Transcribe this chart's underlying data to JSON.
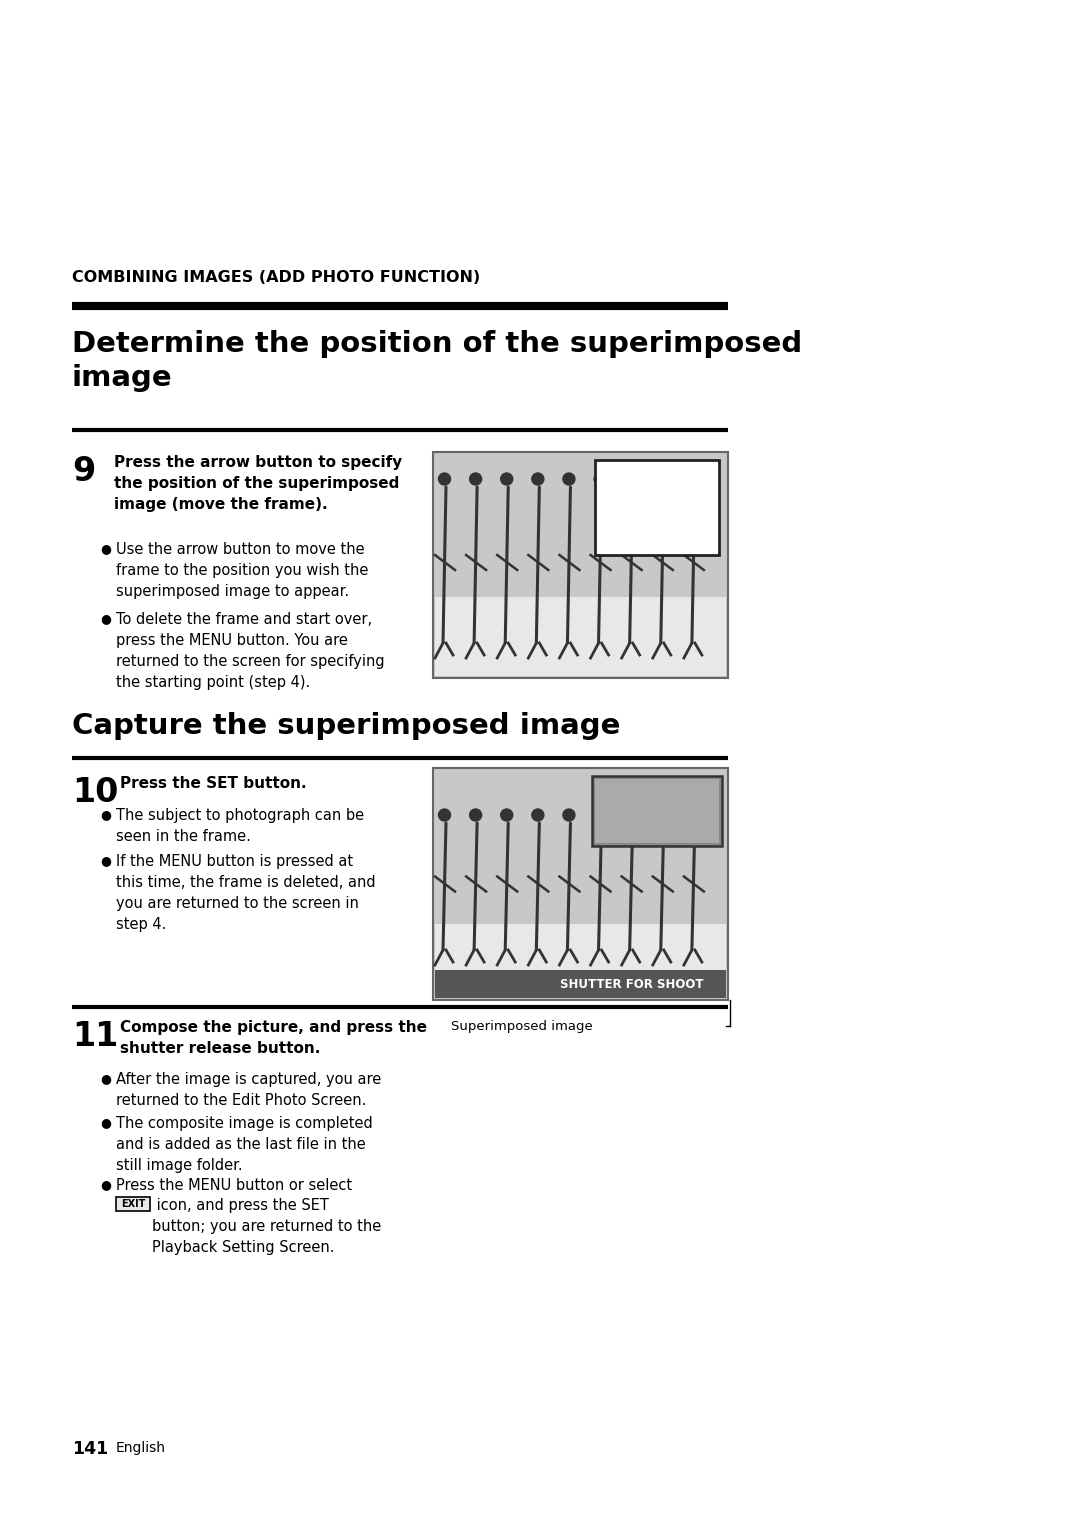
{
  "bg_color": "#ffffff",
  "top_label": "COMBINING IMAGES (ADD PHOTO FUNCTION)",
  "title1": "Determine the position of the superimposed\nimage",
  "title2": "Capture the superimposed image",
  "step9_num": "9",
  "step9_bold": "Press the arrow button to specify\nthe position of the superimposed\nimage (move the frame).",
  "step9_bullet1": "Use the arrow button to move the\nframe to the position you wish the\nsuperimposed image to appear.",
  "step9_bullet2": "To delete the frame and start over,\npress the MENU button. You are\nreturned to the screen for specifying\nthe starting point (step 4).",
  "step10_num": "10",
  "step10_bold": "Press the SET button.",
  "step10_bullet1": "The subject to photograph can be\nseen in the frame.",
  "step10_bullet2": "If the MENU button is pressed at\nthis time, the frame is deleted, and\nyou are returned to the screen in\nstep 4.",
  "step11_num": "11",
  "step11_bold": "Compose the picture, and press the\nshutter release button.",
  "step11_bullet1": "After the image is captured, you are\nreturned to the Edit Photo Screen.",
  "step11_bullet2": "The composite image is completed\nand is added as the last file in the\nstill image folder.",
  "step11_bullet3_pre": "Press the MENU button or select\nthe ",
  "step11_bullet3_exit": "EXIT",
  "step11_bullet3_post": " icon, and press the SET\nbutton; you are returned to the\nPlayback Setting Screen.",
  "page_num": "141",
  "page_lang": "English",
  "superimposed_label": "Superimposed image"
}
